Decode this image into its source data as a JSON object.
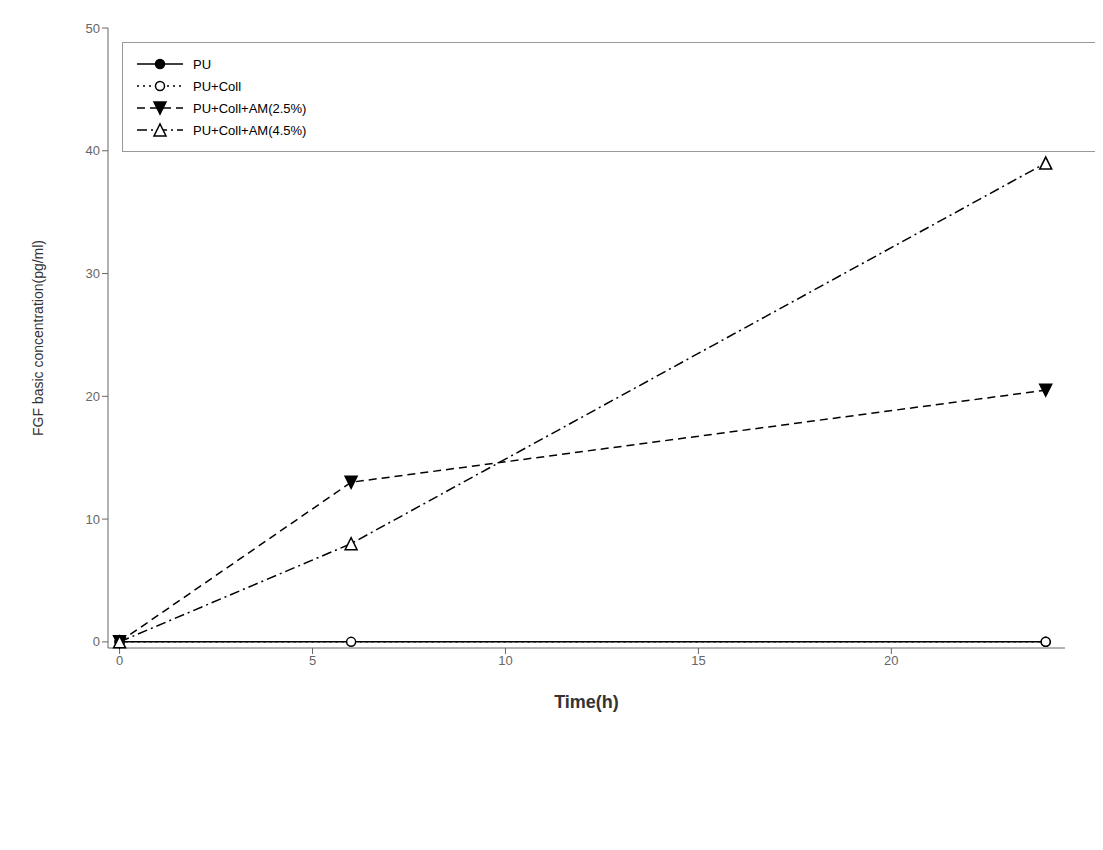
{
  "chart_data": {
    "type": "line",
    "xlabel": "Time(h)",
    "ylabel": "FGF basic concentration(pg/ml)",
    "xlim": [
      -0.3,
      24.5
    ],
    "ylim": [
      -0.5,
      50
    ],
    "xticks": [
      0,
      5,
      10,
      15,
      20
    ],
    "yticks": [
      0,
      10,
      20,
      30,
      40,
      50
    ],
    "grid": false,
    "legend": "upper left",
    "series": [
      {
        "name": "PU",
        "x": [
          0,
          24
        ],
        "values": [
          0,
          0
        ],
        "color": "black",
        "marker": "circle",
        "line_style": "solid"
      },
      {
        "name": "PU+Coll",
        "x": [
          0,
          6,
          24
        ],
        "values": [
          0,
          0,
          0
        ],
        "color": "black",
        "marker": "circle-open",
        "line_style": "dotted"
      },
      {
        "name": "PU+Coll+AM(2.5%)",
        "x": [
          0,
          6,
          24
        ],
        "values": [
          0,
          13,
          20.5
        ],
        "color": "black",
        "marker": "triangle-down",
        "line_style": "dashed"
      },
      {
        "name": "PU+Coll+AM(4.5%)",
        "x": [
          0,
          6,
          24
        ],
        "values": [
          0,
          8,
          39
        ],
        "color": "black",
        "marker": "triangle-up-open",
        "line_style": "dashdot"
      }
    ]
  }
}
